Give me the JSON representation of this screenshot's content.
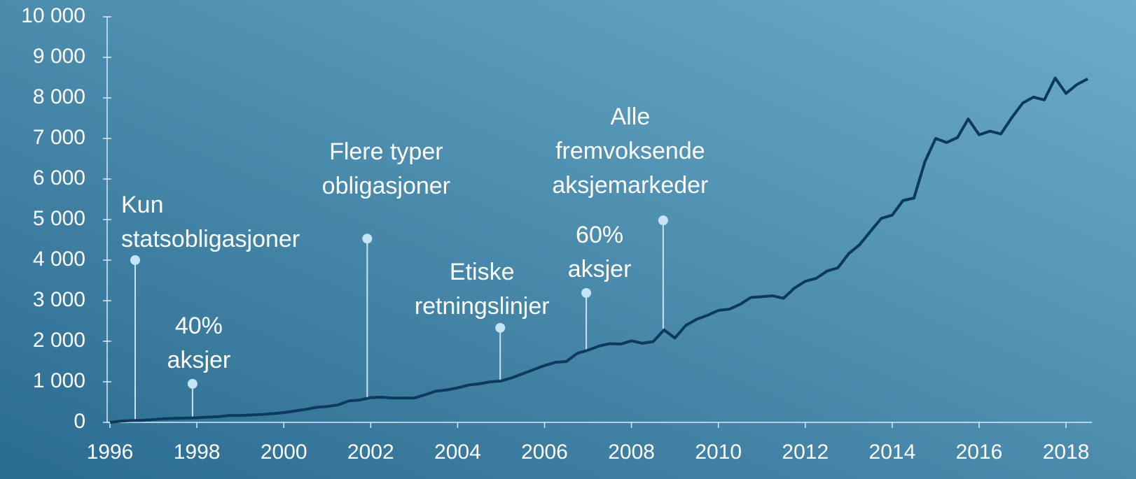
{
  "chart_data": {
    "type": "line",
    "x": [
      1996.0,
      1996.25,
      1996.5,
      1996.75,
      1997.0,
      1997.25,
      1997.5,
      1997.75,
      1998.0,
      1998.25,
      1998.5,
      1998.75,
      1999.0,
      1999.25,
      1999.5,
      1999.75,
      2000.0,
      2000.25,
      2000.5,
      2000.75,
      2001.0,
      2001.25,
      2001.5,
      2001.75,
      2002.0,
      2002.25,
      2002.5,
      2002.75,
      2003.0,
      2003.25,
      2003.5,
      2003.75,
      2004.0,
      2004.25,
      2004.5,
      2004.75,
      2005.0,
      2005.25,
      2005.5,
      2005.75,
      2006.0,
      2006.25,
      2006.5,
      2006.75,
      2007.0,
      2007.25,
      2007.5,
      2007.75,
      2008.0,
      2008.25,
      2008.5,
      2008.75,
      2009.0,
      2009.25,
      2009.5,
      2009.75,
      2010.0,
      2010.25,
      2010.5,
      2010.75,
      2011.0,
      2011.25,
      2011.5,
      2011.75,
      2012.0,
      2012.25,
      2012.5,
      2012.75,
      2013.0,
      2013.25,
      2013.5,
      2013.75,
      2014.0,
      2014.25,
      2014.5,
      2014.75,
      2015.0,
      2015.25,
      2015.5,
      2015.75,
      2016.0,
      2016.25,
      2016.5,
      2016.75,
      2017.0,
      2017.25,
      2017.5,
      2017.75,
      2018.0,
      2018.25,
      2018.5
    ],
    "series": [
      {
        "color": "#0b3a5c",
        "values": [
          0,
          30,
          45,
          50,
          70,
          90,
          100,
          105,
          115,
          130,
          140,
          170,
          170,
          180,
          195,
          215,
          240,
          280,
          320,
          370,
          390,
          430,
          530,
          550,
          610,
          620,
          600,
          600,
          600,
          680,
          770,
          800,
          850,
          920,
          950,
          1000,
          1020,
          1100,
          1200,
          1300,
          1400,
          1480,
          1500,
          1700,
          1780,
          1880,
          1940,
          1930,
          2010,
          1950,
          1990,
          2280,
          2080,
          2390,
          2540,
          2640,
          2760,
          2790,
          2910,
          3080,
          3100,
          3120,
          3060,
          3310,
          3480,
          3550,
          3730,
          3810,
          4160,
          4380,
          4710,
          5030,
          5110,
          5470,
          5530,
          6420,
          7000,
          6900,
          7020,
          7480,
          7090,
          7180,
          7110,
          7510,
          7870,
          8020,
          7950,
          8490,
          8110,
          8330,
          8470
        ]
      }
    ],
    "xlim": [
      1996,
      2018.6
    ],
    "xticks": [
      1996,
      1998,
      2000,
      2002,
      2004,
      2006,
      2008,
      2010,
      2012,
      2014,
      2016,
      2018
    ],
    "ylim": [
      0,
      10000
    ],
    "yticks": [
      0,
      {
        "value": 1000,
        "label": "1 000"
      },
      {
        "value": 2000,
        "label": "2 000"
      },
      {
        "value": 3000,
        "label": "3 000"
      },
      {
        "value": 4000,
        "label": "4 000"
      },
      {
        "value": 5000,
        "label": "5 000"
      },
      {
        "value": 6000,
        "label": "6 000"
      },
      {
        "value": 7000,
        "label": "7 000"
      },
      {
        "value": 8000,
        "label": "8 000"
      },
      {
        "value": 9000,
        "label": "9 000"
      },
      {
        "value": 10000,
        "label": "10 000"
      }
    ],
    "annotations": [
      {
        "text": [
          "Kun",
          "statsobligasjoner"
        ],
        "x": 1996.58,
        "y": 4000
      },
      {
        "text": [
          "40%",
          "aksjer"
        ],
        "x": 1997.9,
        "y": 950
      },
      {
        "text": [
          "Flere typer",
          "obligasjoner"
        ],
        "x": 2001.92,
        "y": 4530
      },
      {
        "text": [
          "Etiske",
          "retningslinjer"
        ],
        "x": 2004.98,
        "y": 2330
      },
      {
        "text": [
          "60%",
          "aksjer"
        ],
        "x": 2006.96,
        "y": 3190
      },
      {
        "text": [
          "Alle",
          "fremvoksende",
          "aksjemarkeder"
        ],
        "x": 2008.73,
        "y": 4980
      }
    ]
  }
}
